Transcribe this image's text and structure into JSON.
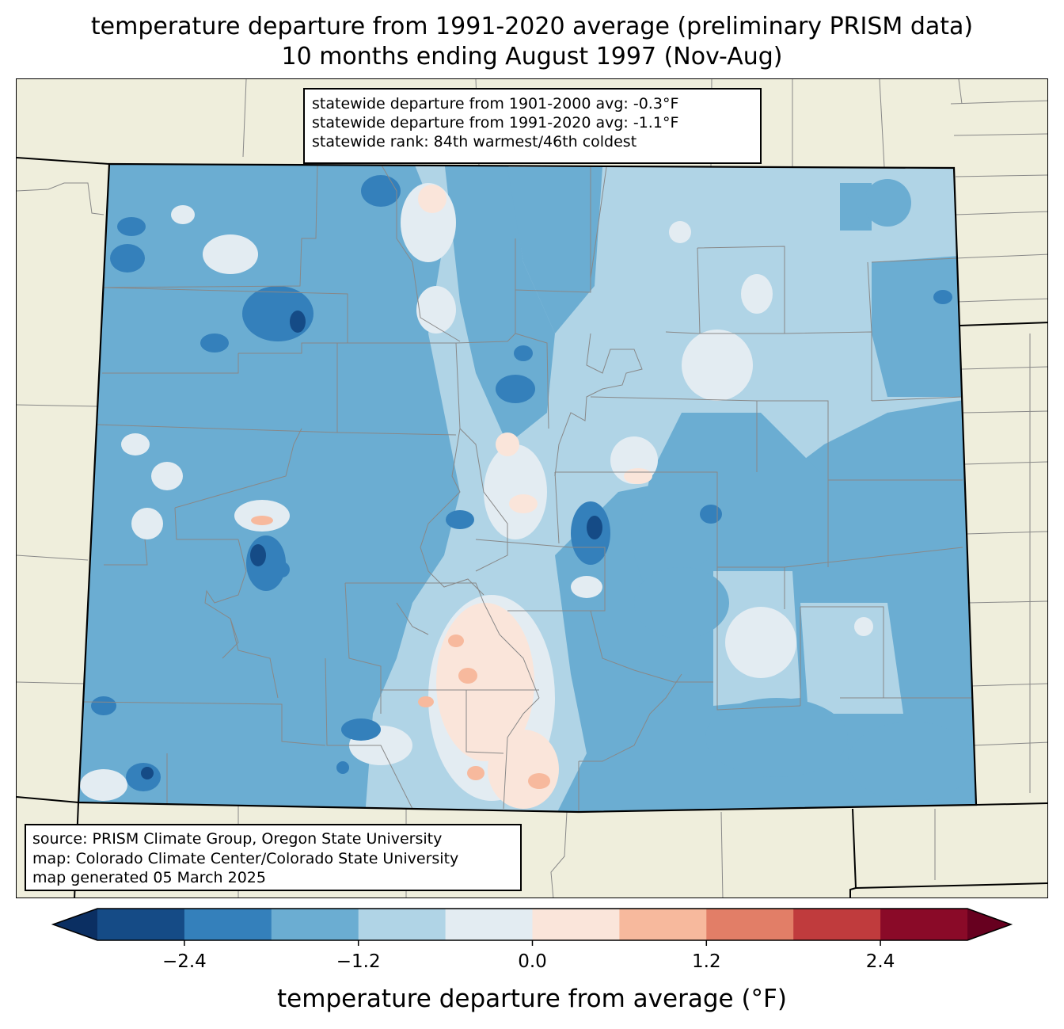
{
  "title": {
    "line1": "temperature departure from 1991-2020 average (preliminary PRISM data)",
    "line2": "10 months ending August 1997 (Nov-Aug)"
  },
  "stats": {
    "line1": "statewide departure from 1901-2000 avg: -0.3°F",
    "line2": "statewide departure from 1991-2020 avg: -1.1°F",
    "line3": "statewide rank: 84th warmest/46th coldest"
  },
  "credits": {
    "line1": "source: PRISM Climate Group, Oregon State University",
    "line2": "map: Colorado Climate Center/Colorado State University",
    "line3": "map generated 05 March 2025"
  },
  "colorbar": {
    "label": "temperature departure from average (°F)",
    "levels": [
      -3.0,
      -2.4,
      -1.8,
      -1.2,
      -0.6,
      0.0,
      0.6,
      1.2,
      1.8,
      2.4,
      3.0
    ],
    "under_color": "#0b2f62",
    "over_color": "#67001f",
    "colors": [
      "#154b86",
      "#3480bb",
      "#6badd2",
      "#b0d4e6",
      "#e3ecf2",
      "#fae5da",
      "#f7b99d",
      "#e27e67",
      "#c03b3d",
      "#8a0a28"
    ],
    "ticks": [
      {
        "value": -2.4,
        "label": "−2.4"
      },
      {
        "value": -1.2,
        "label": "−1.2"
      },
      {
        "value": 0.0,
        "label": "0.0"
      },
      {
        "value": 1.2,
        "label": "1.2"
      },
      {
        "value": 2.4,
        "label": "2.4"
      }
    ]
  },
  "colors": {
    "land_background": "#efeedc",
    "state_border": "#000000",
    "county_border": "#888888"
  }
}
